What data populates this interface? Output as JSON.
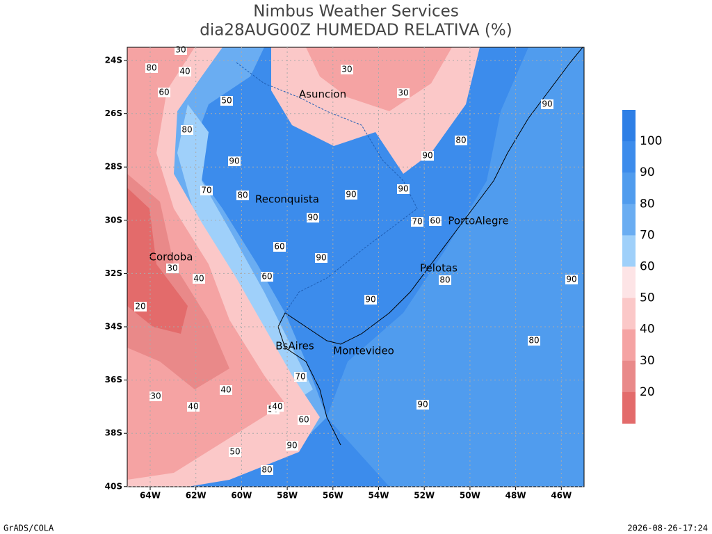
{
  "header": {
    "title": "Nimbus Weather Services",
    "subtitle": "dia28AUG00Z HUMEDAD RELATIVA (%)"
  },
  "map": {
    "lat_labels": [
      "24S",
      "26S",
      "28S",
      "30S",
      "32S",
      "34S",
      "36S",
      "38S",
      "40S"
    ],
    "lon_labels": [
      "64W",
      "62W",
      "60W",
      "58W",
      "56W",
      "54W",
      "52W",
      "50W",
      "48W",
      "46W"
    ],
    "cities": [
      "Asuncion",
      "Reconquista",
      "Cordoba",
      "PortoAlegre",
      "Pelotas",
      "BsAires",
      "Montevideo"
    ],
    "contour_labels": [
      "30",
      "80",
      "40",
      "60",
      "70",
      "40",
      "50",
      "30",
      "50",
      "40",
      "30",
      "80",
      "90",
      "80",
      "90",
      "90",
      "90",
      "60",
      "60",
      "40",
      "30",
      "20",
      "90",
      "80",
      "70",
      "60",
      "90",
      "30",
      "40",
      "50",
      "60",
      "90",
      "80",
      "90",
      "80",
      "70",
      "90",
      "90",
      "80",
      "90"
    ]
  },
  "colorbar": {
    "labels": [
      "100",
      "90",
      "80",
      "70",
      "60",
      "50",
      "40",
      "30",
      "20"
    ],
    "colors": [
      "#2e7fe6",
      "#3c8cec",
      "#509cee",
      "#6aadf2",
      "#9fd0fa",
      "#fde4e6",
      "#fbc8c8",
      "#f5a3a3",
      "#e98989",
      "#e36b6b"
    ]
  },
  "footer": {
    "left": "GrADS/COLA",
    "right": "2026-08-26-17:24"
  }
}
